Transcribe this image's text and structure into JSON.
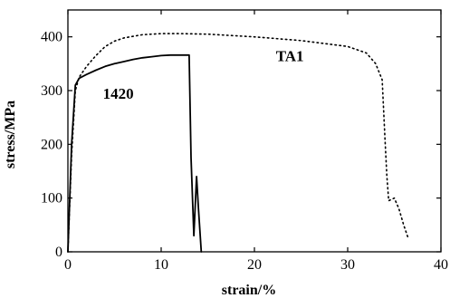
{
  "chart_data": {
    "type": "line",
    "xlabel": "strain/%",
    "ylabel": "stress/MPa",
    "xlim": [
      0,
      40
    ],
    "ylim": [
      0,
      450
    ],
    "xticks": [
      0,
      10,
      20,
      30,
      40
    ],
    "yticks": [
      0,
      100,
      200,
      300,
      400
    ],
    "grid": false,
    "series": [
      {
        "name": "1420",
        "style": "solid",
        "color": "#000000",
        "x": [
          0.0,
          0.4,
          0.8,
          1.2,
          2,
          3,
          4,
          5,
          6,
          7,
          8,
          9,
          10,
          11,
          12,
          13.0,
          13.2,
          13.5,
          13.8,
          14.0,
          14.3
        ],
        "y": [
          0,
          200,
          310,
          323,
          330,
          338,
          345,
          350,
          354,
          358,
          361,
          363,
          365,
          366,
          366,
          366,
          175,
          30,
          140,
          80,
          0
        ]
      },
      {
        "name": "TA1",
        "style": "dotted",
        "color": "#000000",
        "x": [
          0.0,
          0.4,
          0.8,
          1.2,
          2,
          3,
          4,
          5,
          6,
          8,
          10,
          12,
          15,
          20,
          25,
          30,
          32,
          33,
          33.7,
          34.0,
          34.2,
          34.4,
          35.0,
          35.5,
          36.0,
          36.5
        ],
        "y": [
          0,
          180,
          300,
          325,
          345,
          365,
          382,
          392,
          398,
          404,
          406,
          406,
          405,
          400,
          393,
          382,
          370,
          350,
          320,
          210,
          140,
          95,
          100,
          80,
          50,
          25
        ]
      }
    ],
    "annotations": [
      "1420",
      "TA1"
    ]
  }
}
